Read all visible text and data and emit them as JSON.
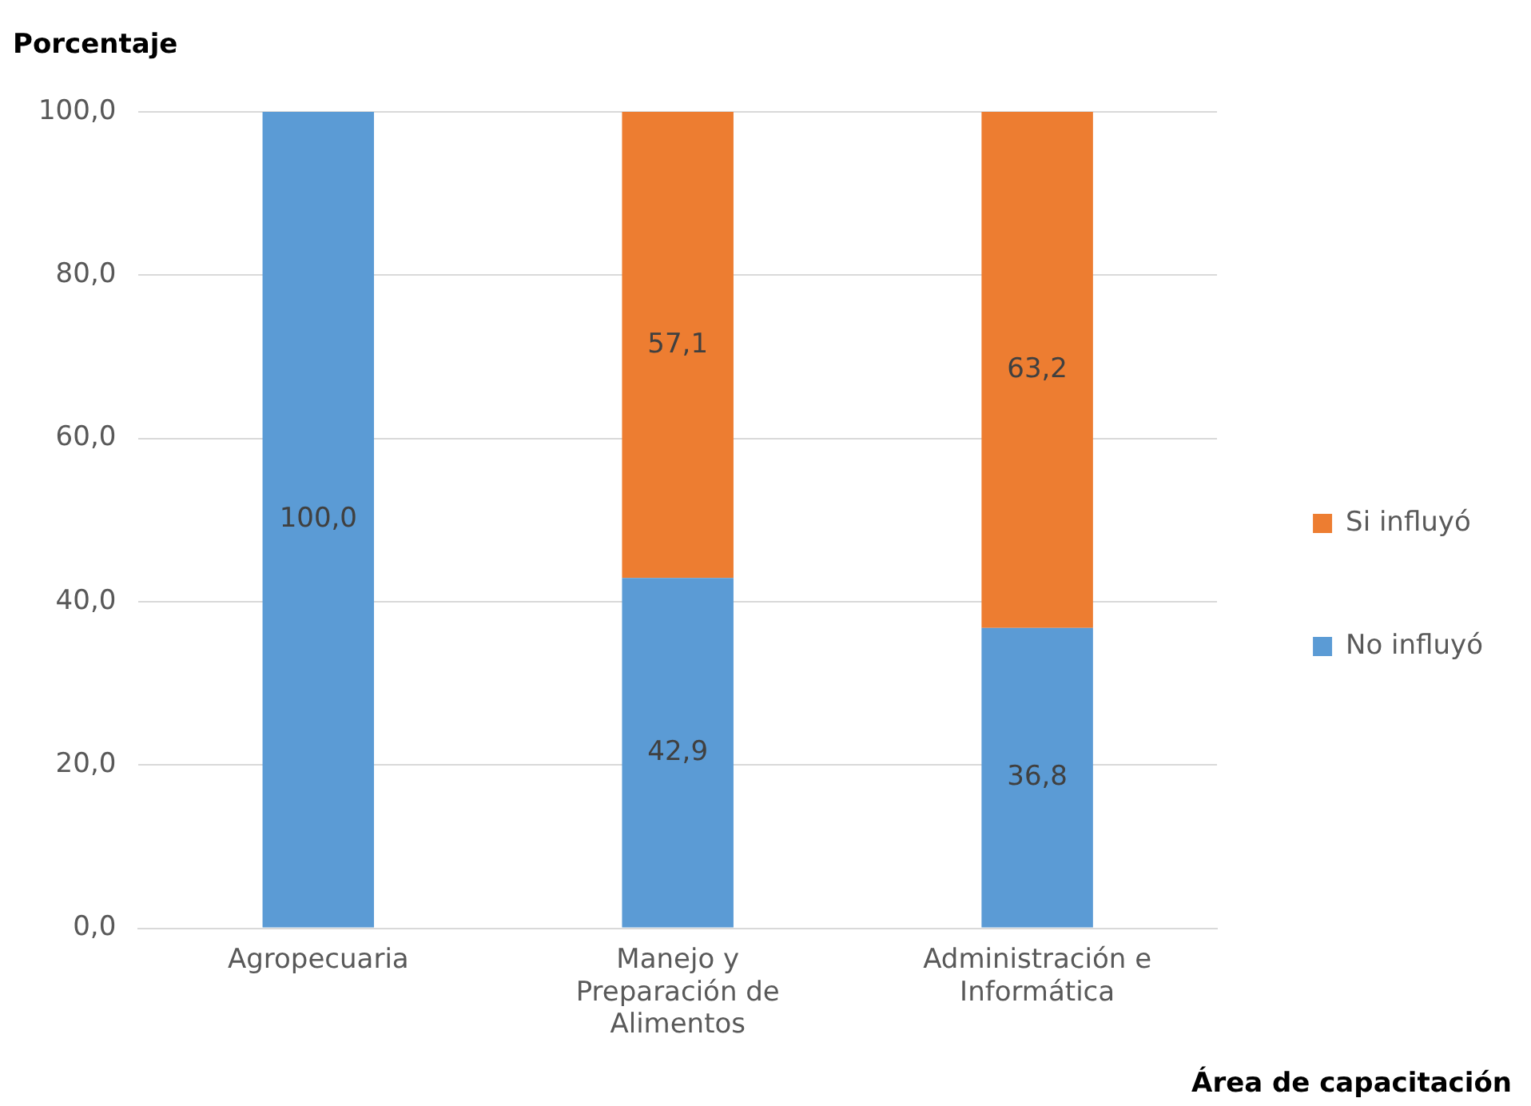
{
  "chart_data": {
    "type": "bar",
    "stacked": true,
    "ylabel": "Porcentaje",
    "xlabel": "Área de capacitación",
    "categories": [
      "Agropecuaria",
      "Manejo y Preparación de Alimentos",
      "Administración e Informática"
    ],
    "series": [
      {
        "name": "No influyó",
        "color": "#5b9bd5",
        "values": [
          100,
          42.9,
          36.8
        ],
        "value_labels": [
          "100,0",
          "42,9",
          "36,8"
        ]
      },
      {
        "name": "Si influyó",
        "color": "#ed7d31",
        "values": [
          null,
          57.1,
          63.2
        ],
        "value_labels": [
          null,
          "57,1",
          "63,2"
        ]
      }
    ],
    "ylim": [
      0,
      100
    ],
    "yticks": [
      {
        "value": 0,
        "label": "0,0"
      },
      {
        "value": 20,
        "label": "20,0"
      },
      {
        "value": 40,
        "label": "40,0"
      },
      {
        "value": 60,
        "label": "60,0"
      },
      {
        "value": 80,
        "label": "80,0"
      },
      {
        "value": 100,
        "label": "100,0"
      }
    ],
    "grid": "y",
    "legend": "right"
  }
}
